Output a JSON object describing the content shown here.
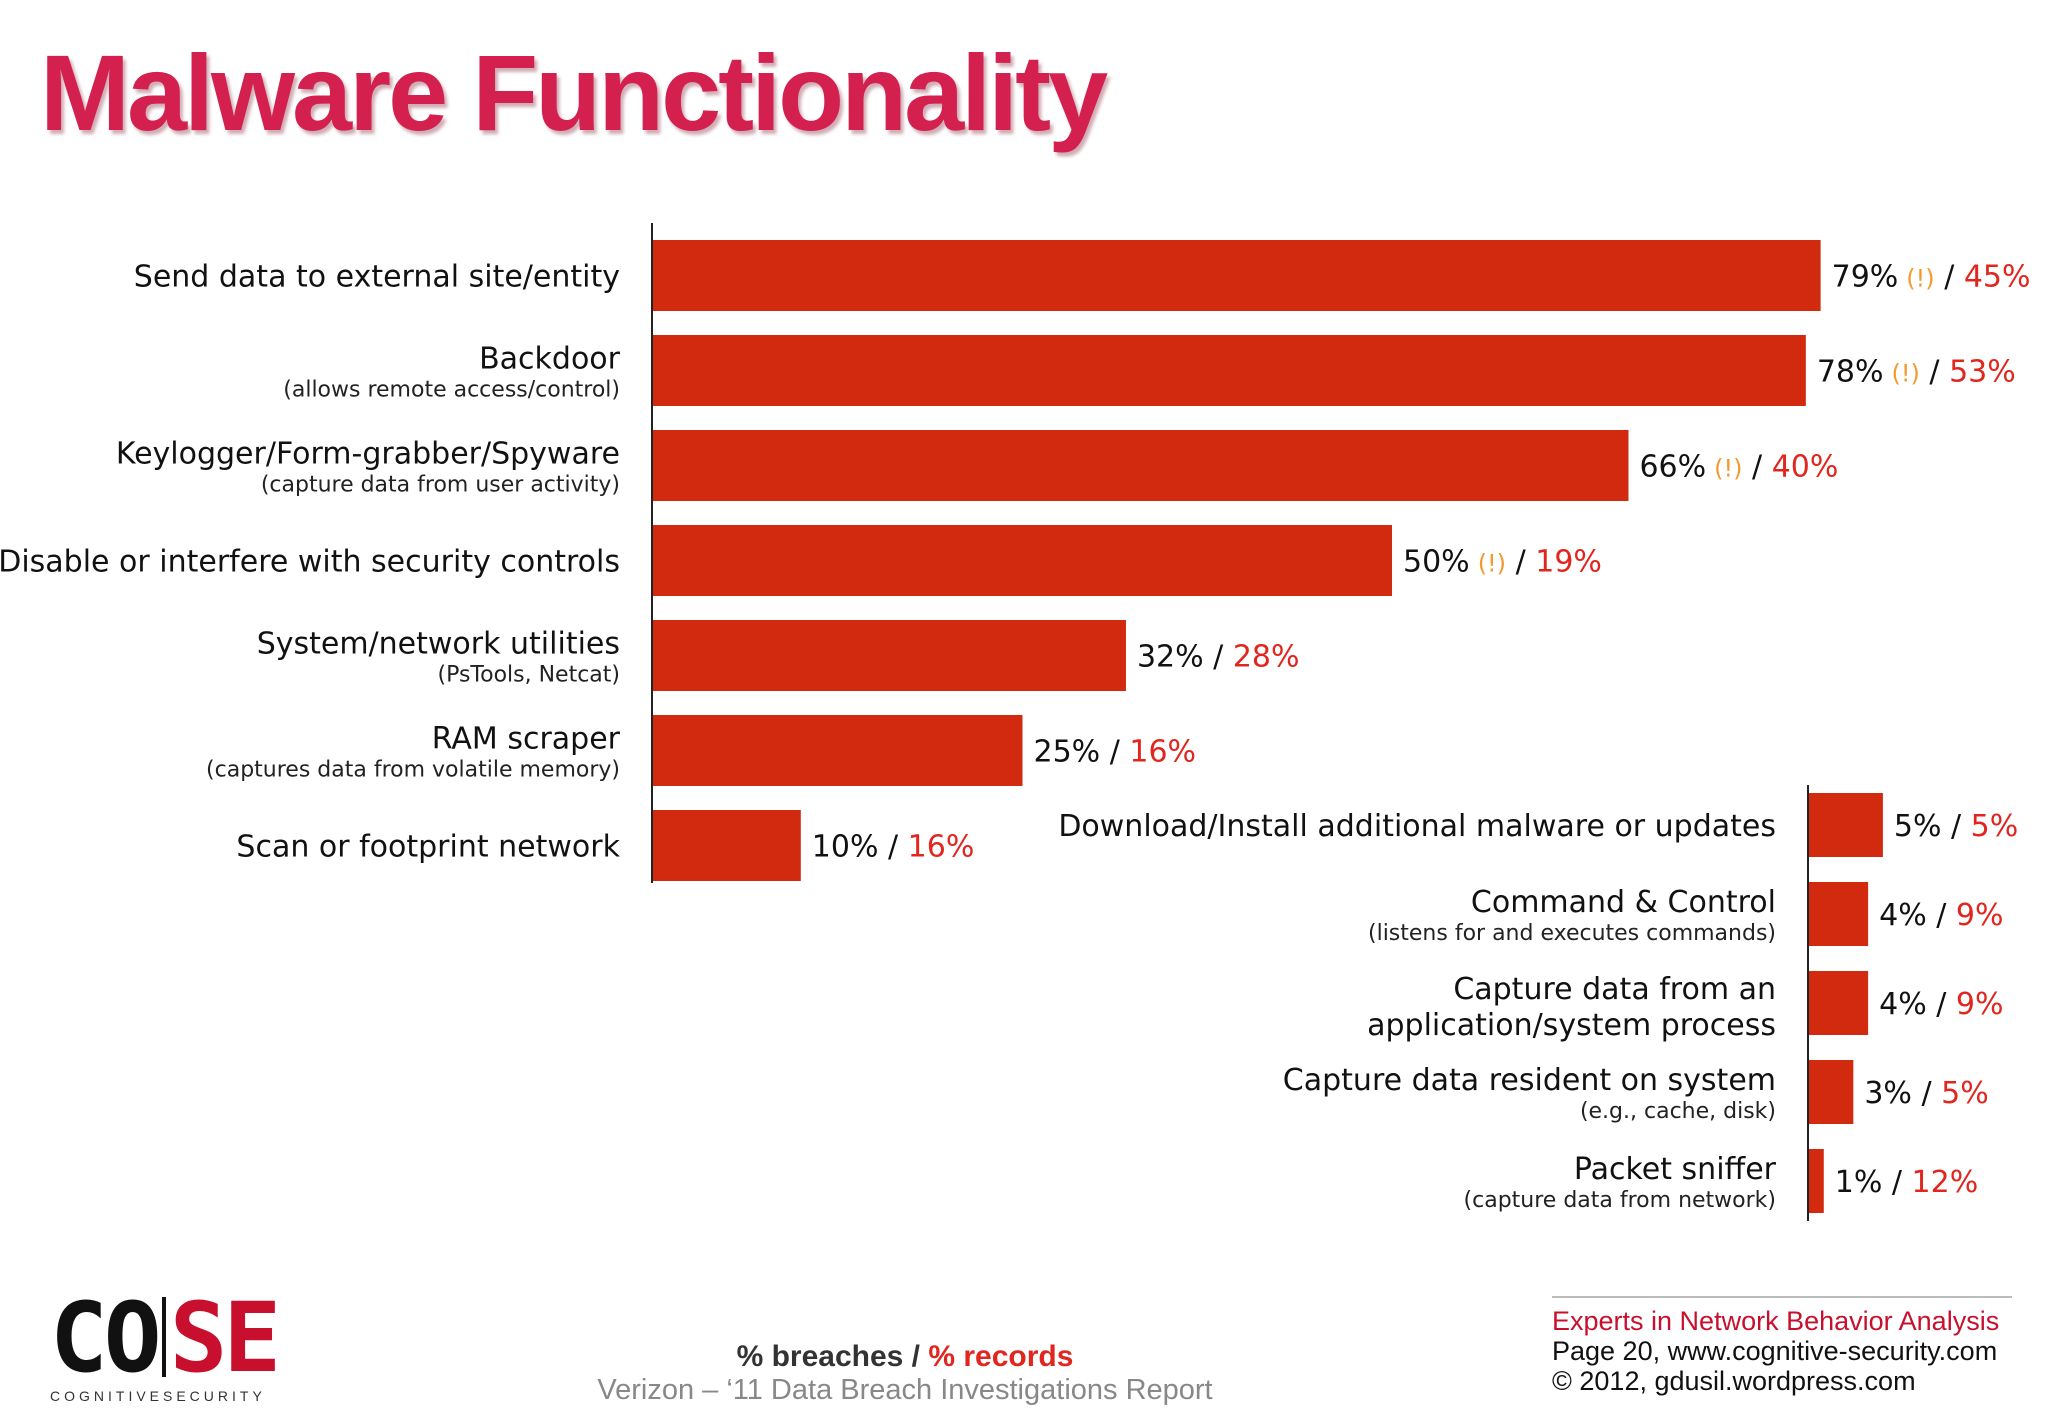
{
  "title": "Malware Functionality",
  "chart_data": [
    {
      "type": "bar",
      "orientation": "horizontal",
      "value_unit": "%",
      "categories": [
        "Send data to external site/entity",
        "Backdoor",
        "Keylogger/Form-grabber/Spyware",
        "Disable or interfere with security controls",
        "System/network utilities",
        "RAM scraper",
        "Scan or footprint network"
      ],
      "subtitles": [
        "",
        "(allows remote access/control)",
        "(capture data from user activity)",
        "",
        "(PsTools, Netcat)",
        "(captures data from volatile memory)",
        ""
      ],
      "series": [
        {
          "name": "% breaches",
          "values": [
            79,
            78,
            66,
            50,
            32,
            25,
            10
          ]
        },
        {
          "name": "% records",
          "values": [
            45,
            53,
            40,
            19,
            28,
            16,
            16
          ]
        }
      ],
      "breach_labels": [
        "79%",
        "78%",
        "66%",
        "50%",
        "32%",
        "25%",
        "10%"
      ],
      "record_labels": [
        "45%",
        "53%",
        "40%",
        "19%",
        "28%",
        "16%",
        "16%"
      ],
      "warning_flags": [
        true,
        true,
        true,
        true,
        false,
        false,
        false
      ]
    },
    {
      "type": "bar",
      "orientation": "horizontal",
      "value_unit": "%",
      "categories": [
        "Download/Install additional malware or updates",
        "Command & Control",
        "Capture data from an application/system process",
        "Capture data resident on system",
        "Packet sniffer"
      ],
      "category_lines": [
        [
          "Download/Install additional malware or updates"
        ],
        [
          "Command & Control"
        ],
        [
          "Capture data from an",
          "application/system process"
        ],
        [
          "Capture data resident on system"
        ],
        [
          "Packet sniffer"
        ]
      ],
      "subtitles": [
        "",
        "(listens for and executes commands)",
        "",
        "(e.g., cache, disk)",
        "(capture data from network)"
      ],
      "series": [
        {
          "name": "% breaches",
          "values": [
            5,
            4,
            4,
            3,
            1
          ]
        },
        {
          "name": "% records",
          "values": [
            5,
            9,
            9,
            5,
            12
          ]
        }
      ],
      "breach_labels": [
        "5%",
        "4%",
        "4%",
        "3%",
        "1%"
      ],
      "record_labels": [
        "5%",
        "9%",
        "9%",
        "5%",
        "12%"
      ],
      "warning_flags": [
        false,
        false,
        false,
        false,
        false
      ]
    }
  ],
  "warning_text": "(!)",
  "label_separator": " / ",
  "legend": {
    "breaches": "% breaches",
    "sep": "/",
    "records": "% records"
  },
  "source": "Verizon – ‘11 Data Breach Investigations Report",
  "logo": {
    "co": "CO",
    "se": "SE",
    "tagline": "COGNITIVESECURITY"
  },
  "footer": {
    "line1": "Experts in Network Behavior Analysis",
    "line2": "Page 20, www.cognitive-security.com",
    "line3": "© 2012, gdusil.wordpress.com"
  },
  "colors": {
    "bar": "#d12a0e",
    "records": "#e0261e",
    "warning": "#f39a2f",
    "title": "#d3204e"
  }
}
